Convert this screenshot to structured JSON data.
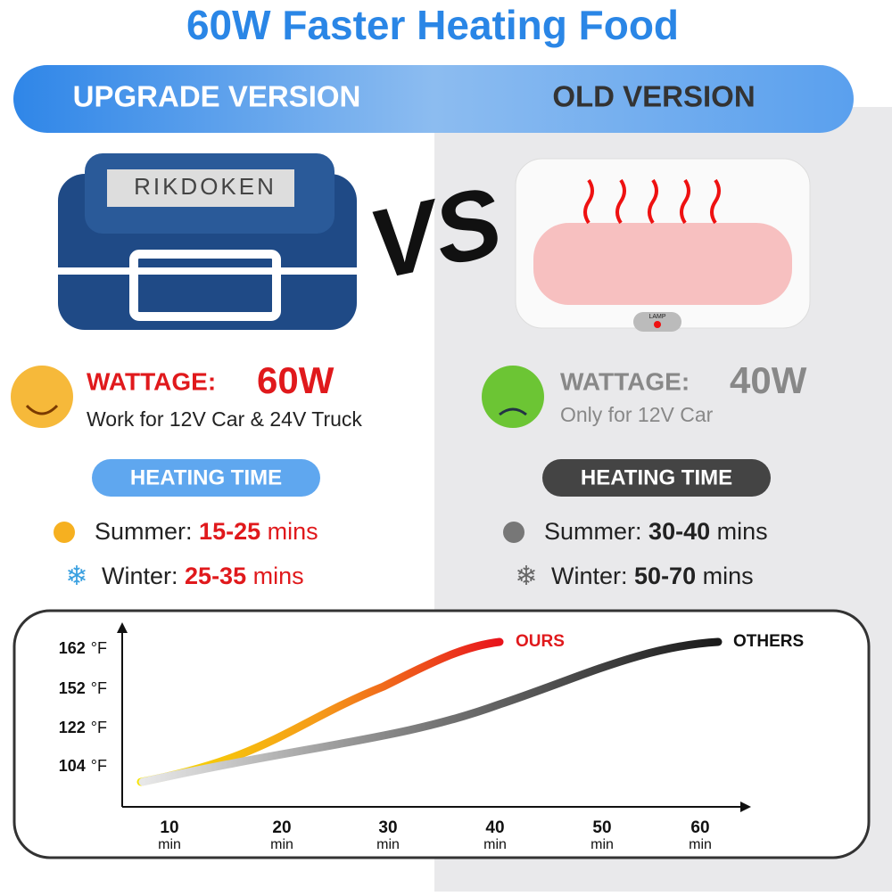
{
  "header": {
    "title": "60W Faster Heating Food"
  },
  "left": {
    "version": "UPGRADE VERSION",
    "brand": "RIKDOKEN",
    "wattage_label": "WATTAGE:",
    "wattage": "60W",
    "note": "Work for 12V Car & 24V Truck",
    "heating_title": "HEATING TIME",
    "summer_label": "Summer:",
    "summer_value": "15-25",
    "summer_unit": "mins",
    "winter_label": "Winter:",
    "winter_value": "25-35",
    "winter_unit": "mins"
  },
  "right": {
    "version": "OLD VERSION",
    "lamp": "LAMP",
    "wattage_label": "WATTAGE:",
    "wattage": "40W",
    "note": "Only for 12V Car",
    "heating_title": "HEATING TIME",
    "summer_label": "Summer:",
    "summer_value": "30-40",
    "summer_unit": "mins",
    "winter_label": "Winter:",
    "winter_value": "50-70",
    "winter_unit": "mins"
  },
  "chart": {
    "y_ticks": [
      {
        "value": "162",
        "unit": "°F"
      },
      {
        "value": "152",
        "unit": "°F"
      },
      {
        "value": "122",
        "unit": "°F"
      },
      {
        "value": "104",
        "unit": "°F"
      }
    ],
    "x_ticks": [
      {
        "value": "10",
        "unit": "min"
      },
      {
        "value": "20",
        "unit": "min"
      },
      {
        "value": "30",
        "unit": "min"
      },
      {
        "value": "40",
        "unit": "min"
      },
      {
        "value": "50",
        "unit": "min"
      },
      {
        "value": "60",
        "unit": "min"
      }
    ],
    "series": [
      "OURS",
      "OTHERS"
    ]
  }
}
